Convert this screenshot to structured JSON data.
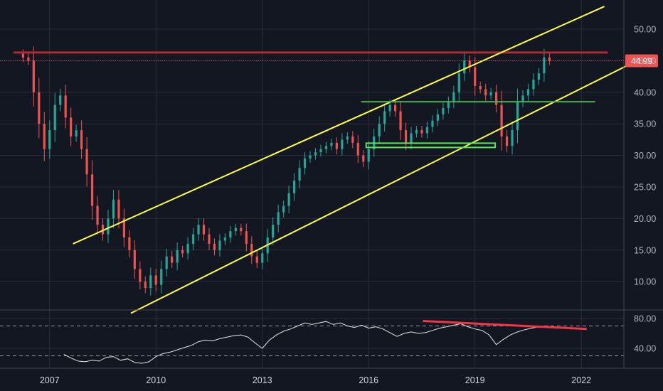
{
  "chart_data": [
    {
      "type": "candlestick",
      "colors": {
        "up": "#26a69a",
        "down": "#ef5350",
        "background": "#131722",
        "grid": "#2a2e39"
      },
      "ylim": [
        5,
        55
      ],
      "y_ticks": [
        "50.00",
        "45.00",
        "40.00",
        "35.00",
        "30.00",
        "25.00",
        "20.00",
        "15.00",
        "10.00"
      ],
      "x_range": [
        2005.6,
        2023.2
      ],
      "x_ticks": [
        "2007",
        "2010",
        "2013",
        "2016",
        "2019",
        "2022"
      ],
      "grid": true,
      "last_price": "44.99",
      "last_price_value": 44.99,
      "last_price_color": "#ef5350",
      "series": [
        {
          "points": [
            [
              2006.25,
              45.5
            ],
            [
              2006.4,
              45.0
            ],
            [
              2006.55,
              40.0
            ],
            [
              2006.7,
              35.0
            ],
            [
              2006.85,
              31.0
            ],
            [
              2007.0,
              34.0
            ],
            [
              2007.15,
              38.0
            ],
            [
              2007.3,
              39.5
            ],
            [
              2007.45,
              36.0
            ],
            [
              2007.6,
              33.0
            ],
            [
              2007.75,
              34.0
            ],
            [
              2007.9,
              31.0
            ],
            [
              2008.05,
              27.0
            ],
            [
              2008.2,
              22.0
            ],
            [
              2008.35,
              19.0
            ],
            [
              2008.5,
              17.5
            ],
            [
              2008.65,
              20.0
            ],
            [
              2008.8,
              23.0
            ],
            [
              2008.95,
              20.0
            ],
            [
              2009.1,
              17.0
            ],
            [
              2009.25,
              15.0
            ],
            [
              2009.4,
              12.0
            ],
            [
              2009.55,
              10.0
            ],
            [
              2009.7,
              9.0
            ],
            [
              2009.85,
              11.0
            ],
            [
              2010.0,
              9.5
            ],
            [
              2010.15,
              12.0
            ],
            [
              2010.3,
              14.0
            ],
            [
              2010.45,
              13.0
            ],
            [
              2010.6,
              15.0
            ],
            [
              2010.75,
              14.5
            ],
            [
              2010.9,
              16.0
            ],
            [
              2011.05,
              17.5
            ],
            [
              2011.2,
              19.0
            ],
            [
              2011.35,
              17.5
            ],
            [
              2011.5,
              16.0
            ],
            [
              2011.65,
              15.0
            ],
            [
              2011.8,
              16.5
            ],
            [
              2011.95,
              17.0
            ],
            [
              2012.1,
              18.0
            ],
            [
              2012.25,
              18.5
            ],
            [
              2012.4,
              18.0
            ],
            [
              2012.55,
              16.0
            ],
            [
              2012.7,
              14.0
            ],
            [
              2012.85,
              13.0
            ],
            [
              2013.0,
              14.5
            ],
            [
              2013.15,
              17.0
            ],
            [
              2013.3,
              19.0
            ],
            [
              2013.45,
              21.0
            ],
            [
              2013.6,
              22.0
            ],
            [
              2013.75,
              24.0
            ],
            [
              2013.9,
              26.0
            ],
            [
              2014.05,
              28.0
            ],
            [
              2014.2,
              29.5
            ],
            [
              2014.35,
              30.0
            ],
            [
              2014.5,
              30.5
            ],
            [
              2014.65,
              31.0
            ],
            [
              2014.8,
              31.5
            ],
            [
              2014.95,
              32.0
            ],
            [
              2015.1,
              31.0
            ],
            [
              2015.25,
              32.5
            ],
            [
              2015.4,
              33.0
            ],
            [
              2015.55,
              32.0
            ],
            [
              2015.7,
              30.0
            ],
            [
              2015.85,
              29.0
            ],
            [
              2016.0,
              31.0
            ],
            [
              2016.15,
              33.0
            ],
            [
              2016.3,
              35.0
            ],
            [
              2016.45,
              37.0
            ],
            [
              2016.6,
              38.0
            ],
            [
              2016.75,
              37.0
            ],
            [
              2016.9,
              34.0
            ],
            [
              2017.05,
              32.0
            ],
            [
              2017.2,
              33.5
            ],
            [
              2017.35,
              34.0
            ],
            [
              2017.5,
              33.5
            ],
            [
              2017.65,
              34.5
            ],
            [
              2017.8,
              35.5
            ],
            [
              2017.95,
              36.5
            ],
            [
              2018.1,
              37.5
            ],
            [
              2018.25,
              38.5
            ],
            [
              2018.4,
              40.0
            ],
            [
              2018.55,
              43.0
            ],
            [
              2018.7,
              45.0
            ],
            [
              2018.85,
              44.0
            ],
            [
              2019.0,
              41.0
            ],
            [
              2019.15,
              40.5
            ],
            [
              2019.3,
              39.5
            ],
            [
              2019.45,
              40.0
            ],
            [
              2019.6,
              38.0
            ],
            [
              2019.75,
              33.0
            ],
            [
              2019.9,
              31.5
            ],
            [
              2020.05,
              34.0
            ],
            [
              2020.2,
              38.5
            ],
            [
              2020.35,
              39.5
            ],
            [
              2020.5,
              40.5
            ],
            [
              2020.65,
              42.0
            ],
            [
              2020.8,
              43.0
            ],
            [
              2020.95,
              45.5
            ],
            [
              2021.1,
              44.99
            ]
          ]
        }
      ],
      "annotations": {
        "resistance": {
          "x1": 2005.98,
          "x2": 2022.75,
          "y": 46.3,
          "color": "#b22833"
        },
        "channel_upper": {
          "x1": 2007.66,
          "y1": 16.0,
          "x2": 2022.65,
          "y2": 53.6,
          "color": "#ffff3b"
        },
        "channel_lower": {
          "x1": 2009.29,
          "y1": 5.0,
          "x2": 2023.35,
          "y2": 44.4,
          "color": "#ffff3b"
        },
        "support_mid": {
          "x1": 2015.79,
          "x2": 2022.39,
          "y": 38.5,
          "color": "#4caf50"
        },
        "support_low": {
          "x1": 2015.93,
          "x2": 2019.57,
          "y": 31.6,
          "color": "#5ce65c"
        }
      }
    },
    {
      "type": "line",
      "ylim": [
        18,
        90
      ],
      "y_ticks": [
        "80.00",
        "40.00"
      ],
      "reference_levels": [
        70,
        30
      ],
      "line_color": "#e6e6e6",
      "points": [
        [
          2007.4,
          32
        ],
        [
          2007.6,
          27
        ],
        [
          2007.8,
          23
        ],
        [
          2008.0,
          22
        ],
        [
          2008.2,
          24
        ],
        [
          2008.4,
          23
        ],
        [
          2008.6,
          28
        ],
        [
          2008.8,
          29
        ],
        [
          2009.0,
          24
        ],
        [
          2009.2,
          26
        ],
        [
          2009.4,
          21
        ],
        [
          2009.6,
          20
        ],
        [
          2009.8,
          22
        ],
        [
          2010.0,
          29
        ],
        [
          2010.2,
          33
        ],
        [
          2010.4,
          35
        ],
        [
          2010.6,
          38
        ],
        [
          2010.8,
          41
        ],
        [
          2011.0,
          44
        ],
        [
          2011.2,
          49
        ],
        [
          2011.4,
          51
        ],
        [
          2011.6,
          50
        ],
        [
          2011.8,
          53
        ],
        [
          2012.0,
          55
        ],
        [
          2012.2,
          57
        ],
        [
          2012.4,
          58
        ],
        [
          2012.6,
          55
        ],
        [
          2012.8,
          47
        ],
        [
          2013.0,
          40
        ],
        [
          2013.2,
          51
        ],
        [
          2013.4,
          58
        ],
        [
          2013.6,
          63
        ],
        [
          2013.8,
          66
        ],
        [
          2014.0,
          70
        ],
        [
          2014.2,
          74
        ],
        [
          2014.4,
          72
        ],
        [
          2014.6,
          74
        ],
        [
          2014.8,
          76
        ],
        [
          2015.0,
          72
        ],
        [
          2015.2,
          74
        ],
        [
          2015.4,
          70
        ],
        [
          2015.6,
          68
        ],
        [
          2015.8,
          71
        ],
        [
          2016.0,
          67
        ],
        [
          2016.2,
          69
        ],
        [
          2016.4,
          66
        ],
        [
          2016.6,
          61
        ],
        [
          2016.8,
          56
        ],
        [
          2017.0,
          60
        ],
        [
          2017.2,
          62
        ],
        [
          2017.4,
          60
        ],
        [
          2017.6,
          61
        ],
        [
          2017.8,
          64
        ],
        [
          2018.0,
          67
        ],
        [
          2018.2,
          69
        ],
        [
          2018.4,
          71
        ],
        [
          2018.6,
          73
        ],
        [
          2018.8,
          69
        ],
        [
          2019.0,
          66
        ],
        [
          2019.2,
          64
        ],
        [
          2019.4,
          58
        ],
        [
          2019.6,
          45
        ],
        [
          2019.8,
          52
        ],
        [
          2020.0,
          58
        ],
        [
          2020.2,
          62
        ],
        [
          2020.4,
          65
        ],
        [
          2020.6,
          67
        ],
        [
          2020.8,
          69
        ],
        [
          2021.0,
          70
        ],
        [
          2021.1,
          68
        ]
      ],
      "annotations": {
        "divergence": {
          "x1": 2017.53,
          "y1": 76.7,
          "x2": 2022.15,
          "y2": 66.0,
          "color": "#f23645"
        }
      }
    }
  ]
}
